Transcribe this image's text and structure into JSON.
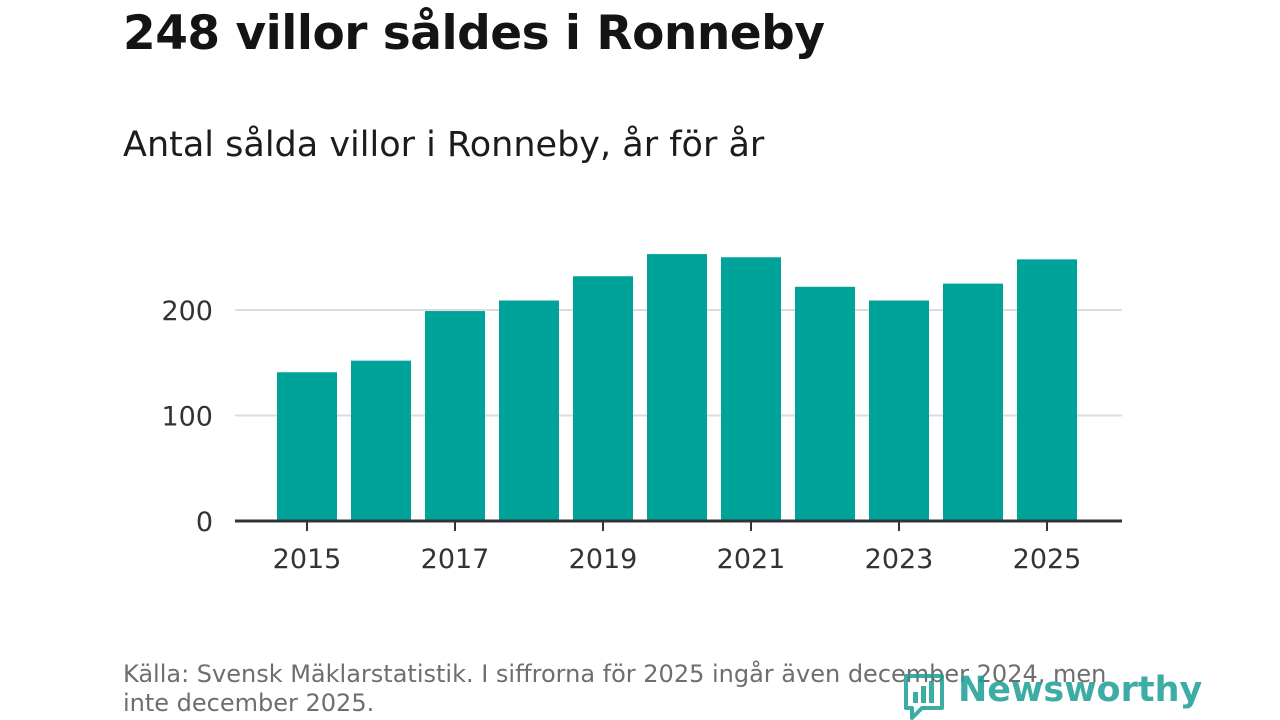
{
  "header": {
    "title": "248 villor såldes i Ronneby",
    "subtitle": "Antal sålda villor i Ronneby, år för år"
  },
  "footer": {
    "source": "Källa: Svensk Mäklarstatistik. I siffrorna för 2025 ingår även december 2024, men inte december 2025.",
    "logo_text": "Newsworthy"
  },
  "colors": {
    "bar": "#00a39a",
    "grid": "#dddddd",
    "axis": "#333333",
    "brand": "#1c9e95"
  },
  "chart_data": {
    "type": "bar",
    "categories": [
      "2015",
      "2016",
      "2017",
      "2018",
      "2019",
      "2020",
      "2021",
      "2022",
      "2023",
      "2024",
      "2025"
    ],
    "values": [
      141,
      152,
      199,
      209,
      232,
      253,
      250,
      222,
      209,
      225,
      248
    ],
    "x_tick_labels": [
      "2015",
      "2017",
      "2019",
      "2021",
      "2023",
      "2025"
    ],
    "y_ticks": [
      0,
      100,
      200
    ],
    "ylim": [
      0,
      270
    ],
    "grid": true,
    "xlabel": "",
    "ylabel": ""
  }
}
